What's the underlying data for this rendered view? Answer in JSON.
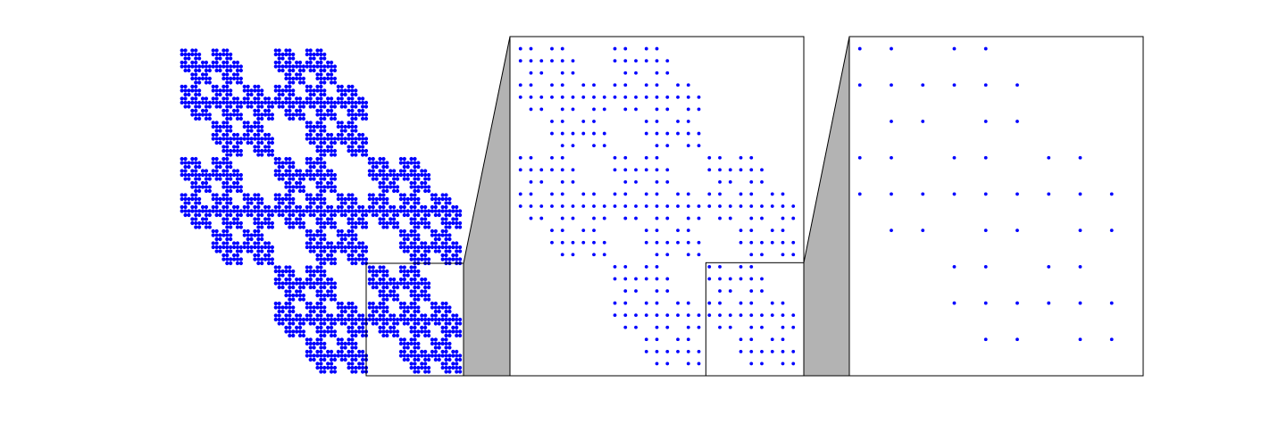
{
  "chart_data": {
    "type": "scatter",
    "color": "#0000ff",
    "generator": [
      [
        1,
        1,
        0
      ],
      [
        1,
        1,
        1
      ],
      [
        0,
        1,
        1
      ]
    ],
    "levels": [
      4,
      3,
      2
    ]
  }
}
